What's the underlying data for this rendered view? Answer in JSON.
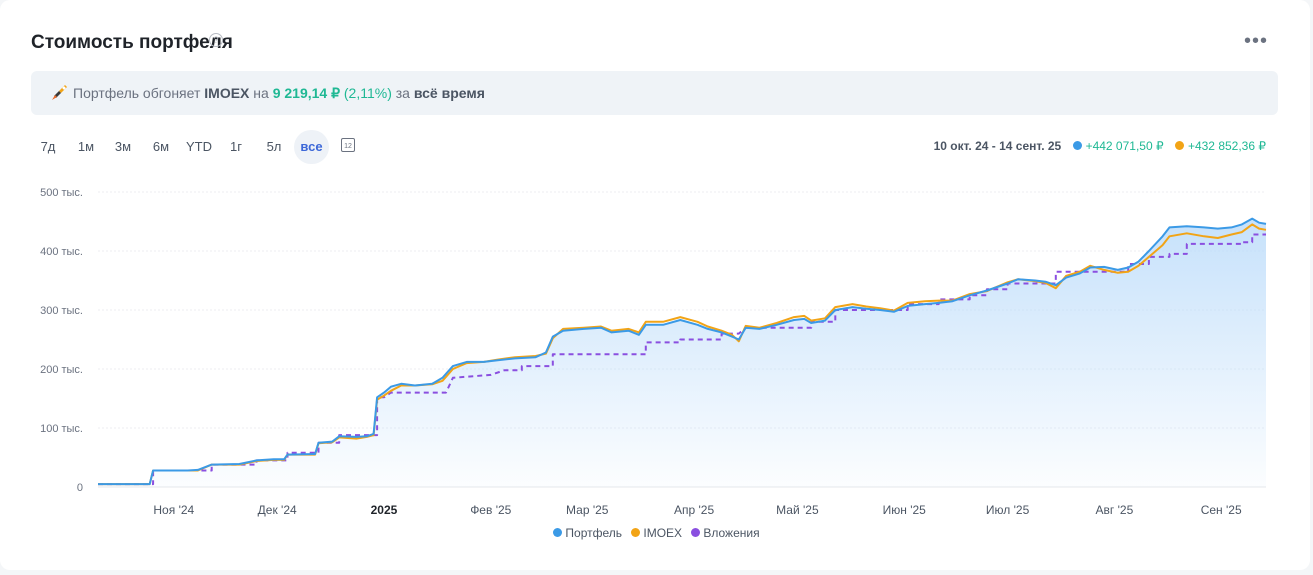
{
  "header": {
    "title": "Стоимость портфеля",
    "help_glyph": "?",
    "more_glyph": "•••"
  },
  "banner": {
    "prefix": "Портфель обгоняет",
    "benchmark": "IMOEX",
    "on": "на",
    "amount": "9 219,14 ₽",
    "percent": "(2,11%)",
    "for": "за",
    "period": "всё время"
  },
  "periods": [
    {
      "label": "7д",
      "active": false
    },
    {
      "label": "1м",
      "active": false
    },
    {
      "label": "3м",
      "active": false
    },
    {
      "label": "6м",
      "active": false
    },
    {
      "label": "YTD",
      "active": false
    },
    {
      "label": "1г",
      "active": false
    },
    {
      "label": "5л",
      "active": false
    },
    {
      "label": "все",
      "active": true
    }
  ],
  "calendar_glyph": "12",
  "range": {
    "label": "10 окт. 24 - 14 сент. 25",
    "portfolio_gain": "+442 071,50 ₽",
    "imoex_gain": "+432 852,36 ₽"
  },
  "colors": {
    "portfolio": "#3b9ae6",
    "imoex": "#f2a416",
    "invest": "#8a4fe0",
    "accent": "#1fb894"
  },
  "chart_data": {
    "type": "line",
    "title": "",
    "xlabel": "",
    "ylabel": "",
    "ylim": [
      0,
      500000
    ],
    "yticks": [
      {
        "value": 0,
        "label": "0"
      },
      {
        "value": 100000,
        "label": "100 тыс."
      },
      {
        "value": 200000,
        "label": "200 тыс."
      },
      {
        "value": 300000,
        "label": "300 тыс."
      },
      {
        "value": 400000,
        "label": "400 тыс."
      },
      {
        "value": 500000,
        "label": "500 тыс."
      }
    ],
    "xlim": [
      "2024-10-10",
      "2025-09-14"
    ],
    "xticks": [
      {
        "date": "2024-11-01",
        "label": "Ноя '24",
        "bold": false
      },
      {
        "date": "2024-12-01",
        "label": "Дек '24",
        "bold": false
      },
      {
        "date": "2025-01-01",
        "label": "2025",
        "bold": true
      },
      {
        "date": "2025-02-01",
        "label": "Фев '25",
        "bold": false
      },
      {
        "date": "2025-03-01",
        "label": "Мар '25",
        "bold": false
      },
      {
        "date": "2025-04-01",
        "label": "Апр '25",
        "bold": false
      },
      {
        "date": "2025-05-01",
        "label": "Май '25",
        "bold": false
      },
      {
        "date": "2025-06-01",
        "label": "Июн '25",
        "bold": false
      },
      {
        "date": "2025-07-01",
        "label": "Июл '25",
        "bold": false
      },
      {
        "date": "2025-08-01",
        "label": "Авг '25",
        "bold": false
      },
      {
        "date": "2025-09-01",
        "label": "Сен '25",
        "bold": false
      }
    ],
    "grid": true,
    "legend": "bottom",
    "series": [
      {
        "name": "Портфель",
        "color": "#3b9ae6",
        "style": "solid",
        "fill": true,
        "points": [
          [
            "2024-10-10",
            5000
          ],
          [
            "2024-10-25",
            5000
          ],
          [
            "2024-10-26",
            28000
          ],
          [
            "2024-11-05",
            28000
          ],
          [
            "2024-11-08",
            29000
          ],
          [
            "2024-11-12",
            38000
          ],
          [
            "2024-11-20",
            39000
          ],
          [
            "2024-11-25",
            45000
          ],
          [
            "2024-11-30",
            47000
          ],
          [
            "2024-12-03",
            47000
          ],
          [
            "2024-12-04",
            55000
          ],
          [
            "2024-12-12",
            56000
          ],
          [
            "2024-12-13",
            75000
          ],
          [
            "2024-12-17",
            77000
          ],
          [
            "2024-12-19",
            86000
          ],
          [
            "2024-12-24",
            85000
          ],
          [
            "2024-12-27",
            86000
          ],
          [
            "2024-12-29",
            90000
          ],
          [
            "2024-12-30",
            152000
          ],
          [
            "2025-01-01",
            160000
          ],
          [
            "2025-01-03",
            170000
          ],
          [
            "2025-01-06",
            175000
          ],
          [
            "2025-01-10",
            172000
          ],
          [
            "2025-01-15",
            175000
          ],
          [
            "2025-01-18",
            185000
          ],
          [
            "2025-01-21",
            205000
          ],
          [
            "2025-01-25",
            212000
          ],
          [
            "2025-01-30",
            212000
          ],
          [
            "2025-02-03",
            215000
          ],
          [
            "2025-02-08",
            218000
          ],
          [
            "2025-02-14",
            220000
          ],
          [
            "2025-02-17",
            228000
          ],
          [
            "2025-02-19",
            255000
          ],
          [
            "2025-02-22",
            265000
          ],
          [
            "2025-02-28",
            268000
          ],
          [
            "2025-03-05",
            270000
          ],
          [
            "2025-03-08",
            262000
          ],
          [
            "2025-03-13",
            265000
          ],
          [
            "2025-03-16",
            258000
          ],
          [
            "2025-03-18",
            275000
          ],
          [
            "2025-03-23",
            275000
          ],
          [
            "2025-03-28",
            283000
          ],
          [
            "2025-04-02",
            275000
          ],
          [
            "2025-04-05",
            268000
          ],
          [
            "2025-04-09",
            262000
          ],
          [
            "2025-04-12",
            255000
          ],
          [
            "2025-04-14",
            250000
          ],
          [
            "2025-04-16",
            270000
          ],
          [
            "2025-04-20",
            268000
          ],
          [
            "2025-04-25",
            275000
          ],
          [
            "2025-04-30",
            283000
          ],
          [
            "2025-05-03",
            285000
          ],
          [
            "2025-05-05",
            278000
          ],
          [
            "2025-05-09",
            282000
          ],
          [
            "2025-05-12",
            300000
          ],
          [
            "2025-05-17",
            305000
          ],
          [
            "2025-05-21",
            302000
          ],
          [
            "2025-05-25",
            300000
          ],
          [
            "2025-05-29",
            297000
          ],
          [
            "2025-06-02",
            307000
          ],
          [
            "2025-06-07",
            310000
          ],
          [
            "2025-06-11",
            312000
          ],
          [
            "2025-06-15",
            315000
          ],
          [
            "2025-06-20",
            325000
          ],
          [
            "2025-06-25",
            333000
          ],
          [
            "2025-07-01",
            345000
          ],
          [
            "2025-07-04",
            352000
          ],
          [
            "2025-07-09",
            350000
          ],
          [
            "2025-07-12",
            348000
          ],
          [
            "2025-07-15",
            342000
          ],
          [
            "2025-07-18",
            355000
          ],
          [
            "2025-07-22",
            362000
          ],
          [
            "2025-07-25",
            372000
          ],
          [
            "2025-07-29",
            373000
          ],
          [
            "2025-08-02",
            368000
          ],
          [
            "2025-08-05",
            372000
          ],
          [
            "2025-08-08",
            382000
          ],
          [
            "2025-08-11",
            400000
          ],
          [
            "2025-08-15",
            425000
          ],
          [
            "2025-08-17",
            440000
          ],
          [
            "2025-08-22",
            442000
          ],
          [
            "2025-08-27",
            440000
          ],
          [
            "2025-08-31",
            438000
          ],
          [
            "2025-09-04",
            440000
          ],
          [
            "2025-09-07",
            445000
          ],
          [
            "2025-09-10",
            455000
          ],
          [
            "2025-09-12",
            448000
          ],
          [
            "2025-09-14",
            446000
          ]
        ]
      },
      {
        "name": "IMOEX",
        "color": "#f2a416",
        "style": "solid",
        "fill": false,
        "points": [
          [
            "2024-10-10",
            5000
          ],
          [
            "2024-10-25",
            5000
          ],
          [
            "2024-10-26",
            28000
          ],
          [
            "2024-11-05",
            28000
          ],
          [
            "2024-11-08",
            28000
          ],
          [
            "2024-11-12",
            38000
          ],
          [
            "2024-11-20",
            38000
          ],
          [
            "2024-11-25",
            44000
          ],
          [
            "2024-11-30",
            46000
          ],
          [
            "2024-12-03",
            46000
          ],
          [
            "2024-12-04",
            55000
          ],
          [
            "2024-12-12",
            55000
          ],
          [
            "2024-12-13",
            74000
          ],
          [
            "2024-12-17",
            76000
          ],
          [
            "2024-12-19",
            84000
          ],
          [
            "2024-12-24",
            82000
          ],
          [
            "2024-12-27",
            85000
          ],
          [
            "2024-12-29",
            88000
          ],
          [
            "2024-12-30",
            148000
          ],
          [
            "2025-01-01",
            155000
          ],
          [
            "2025-01-03",
            163000
          ],
          [
            "2025-01-06",
            172000
          ],
          [
            "2025-01-10",
            172000
          ],
          [
            "2025-01-15",
            174000
          ],
          [
            "2025-01-18",
            180000
          ],
          [
            "2025-01-21",
            200000
          ],
          [
            "2025-01-25",
            210000
          ],
          [
            "2025-01-30",
            212000
          ],
          [
            "2025-02-03",
            216000
          ],
          [
            "2025-02-08",
            220000
          ],
          [
            "2025-02-14",
            222000
          ],
          [
            "2025-02-17",
            226000
          ],
          [
            "2025-02-19",
            252000
          ],
          [
            "2025-02-22",
            268000
          ],
          [
            "2025-02-28",
            270000
          ],
          [
            "2025-03-05",
            272000
          ],
          [
            "2025-03-08",
            265000
          ],
          [
            "2025-03-13",
            268000
          ],
          [
            "2025-03-16",
            262000
          ],
          [
            "2025-03-18",
            280000
          ],
          [
            "2025-03-23",
            280000
          ],
          [
            "2025-03-28",
            288000
          ],
          [
            "2025-04-02",
            280000
          ],
          [
            "2025-04-05",
            272000
          ],
          [
            "2025-04-09",
            265000
          ],
          [
            "2025-04-12",
            258000
          ],
          [
            "2025-04-14",
            247000
          ],
          [
            "2025-04-16",
            273000
          ],
          [
            "2025-04-20",
            270000
          ],
          [
            "2025-04-25",
            278000
          ],
          [
            "2025-04-30",
            288000
          ],
          [
            "2025-05-03",
            290000
          ],
          [
            "2025-05-05",
            282000
          ],
          [
            "2025-05-09",
            286000
          ],
          [
            "2025-05-12",
            305000
          ],
          [
            "2025-05-17",
            310000
          ],
          [
            "2025-05-21",
            306000
          ],
          [
            "2025-05-25",
            303000
          ],
          [
            "2025-05-29",
            299000
          ],
          [
            "2025-06-02",
            312000
          ],
          [
            "2025-06-07",
            315000
          ],
          [
            "2025-06-11",
            316000
          ],
          [
            "2025-06-15",
            316000
          ],
          [
            "2025-06-20",
            327000
          ],
          [
            "2025-06-25",
            332000
          ],
          [
            "2025-07-01",
            347000
          ],
          [
            "2025-07-04",
            352000
          ],
          [
            "2025-07-09",
            349000
          ],
          [
            "2025-07-12",
            346000
          ],
          [
            "2025-07-15",
            337000
          ],
          [
            "2025-07-18",
            358000
          ],
          [
            "2025-07-22",
            365000
          ],
          [
            "2025-07-25",
            375000
          ],
          [
            "2025-07-29",
            368000
          ],
          [
            "2025-08-02",
            363000
          ],
          [
            "2025-08-05",
            365000
          ],
          [
            "2025-08-08",
            375000
          ],
          [
            "2025-08-11",
            390000
          ],
          [
            "2025-08-15",
            410000
          ],
          [
            "2025-08-17",
            425000
          ],
          [
            "2025-08-22",
            430000
          ],
          [
            "2025-08-27",
            425000
          ],
          [
            "2025-08-31",
            422000
          ],
          [
            "2025-09-04",
            428000
          ],
          [
            "2025-09-07",
            432000
          ],
          [
            "2025-09-10",
            445000
          ],
          [
            "2025-09-12",
            438000
          ],
          [
            "2025-09-14",
            436000
          ]
        ]
      },
      {
        "name": "Вложения",
        "color": "#8a4fe0",
        "style": "dashed",
        "fill": false,
        "points": [
          [
            "2024-10-10",
            5000
          ],
          [
            "2024-10-26",
            5000
          ],
          [
            "2024-10-26",
            28000
          ],
          [
            "2024-11-12",
            28000
          ],
          [
            "2024-11-12",
            38000
          ],
          [
            "2024-11-25",
            38000
          ],
          [
            "2024-11-25",
            45000
          ],
          [
            "2024-12-04",
            45000
          ],
          [
            "2024-12-04",
            58000
          ],
          [
            "2024-12-13",
            58000
          ],
          [
            "2024-12-13",
            75000
          ],
          [
            "2024-12-19",
            75000
          ],
          [
            "2024-12-19",
            88000
          ],
          [
            "2024-12-30",
            88000
          ],
          [
            "2024-12-30",
            152000
          ],
          [
            "2025-01-01",
            152000
          ],
          [
            "2025-01-03",
            160000
          ],
          [
            "2025-01-19",
            160000
          ],
          [
            "2025-01-21",
            185000
          ],
          [
            "2025-02-01",
            190000
          ],
          [
            "2025-02-05",
            198000
          ],
          [
            "2025-02-10",
            198000
          ],
          [
            "2025-02-10",
            205000
          ],
          [
            "2025-02-19",
            205000
          ],
          [
            "2025-02-19",
            225000
          ],
          [
            "2025-03-18",
            225000
          ],
          [
            "2025-03-18",
            245000
          ],
          [
            "2025-03-28",
            245000
          ],
          [
            "2025-03-28",
            250000
          ],
          [
            "2025-04-09",
            250000
          ],
          [
            "2025-04-09",
            260000
          ],
          [
            "2025-04-14",
            260000
          ],
          [
            "2025-04-16",
            270000
          ],
          [
            "2025-05-05",
            270000
          ],
          [
            "2025-05-05",
            280000
          ],
          [
            "2025-05-12",
            280000
          ],
          [
            "2025-05-12",
            300000
          ],
          [
            "2025-06-02",
            300000
          ],
          [
            "2025-06-02",
            310000
          ],
          [
            "2025-06-11",
            310000
          ],
          [
            "2025-06-11",
            318000
          ],
          [
            "2025-06-20",
            318000
          ],
          [
            "2025-06-20",
            325000
          ],
          [
            "2025-06-25",
            325000
          ],
          [
            "2025-06-25",
            335000
          ],
          [
            "2025-07-01",
            335000
          ],
          [
            "2025-07-01",
            345000
          ],
          [
            "2025-07-15",
            345000
          ],
          [
            "2025-07-15",
            365000
          ],
          [
            "2025-08-05",
            365000
          ],
          [
            "2025-08-05",
            378000
          ],
          [
            "2025-08-11",
            378000
          ],
          [
            "2025-08-11",
            390000
          ],
          [
            "2025-08-17",
            390000
          ],
          [
            "2025-08-17",
            395000
          ],
          [
            "2025-08-22",
            395000
          ],
          [
            "2025-08-22",
            412000
          ],
          [
            "2025-09-07",
            412000
          ],
          [
            "2025-09-07",
            415000
          ],
          [
            "2025-09-10",
            415000
          ],
          [
            "2025-09-10",
            428000
          ],
          [
            "2025-09-14",
            428000
          ]
        ]
      }
    ]
  }
}
